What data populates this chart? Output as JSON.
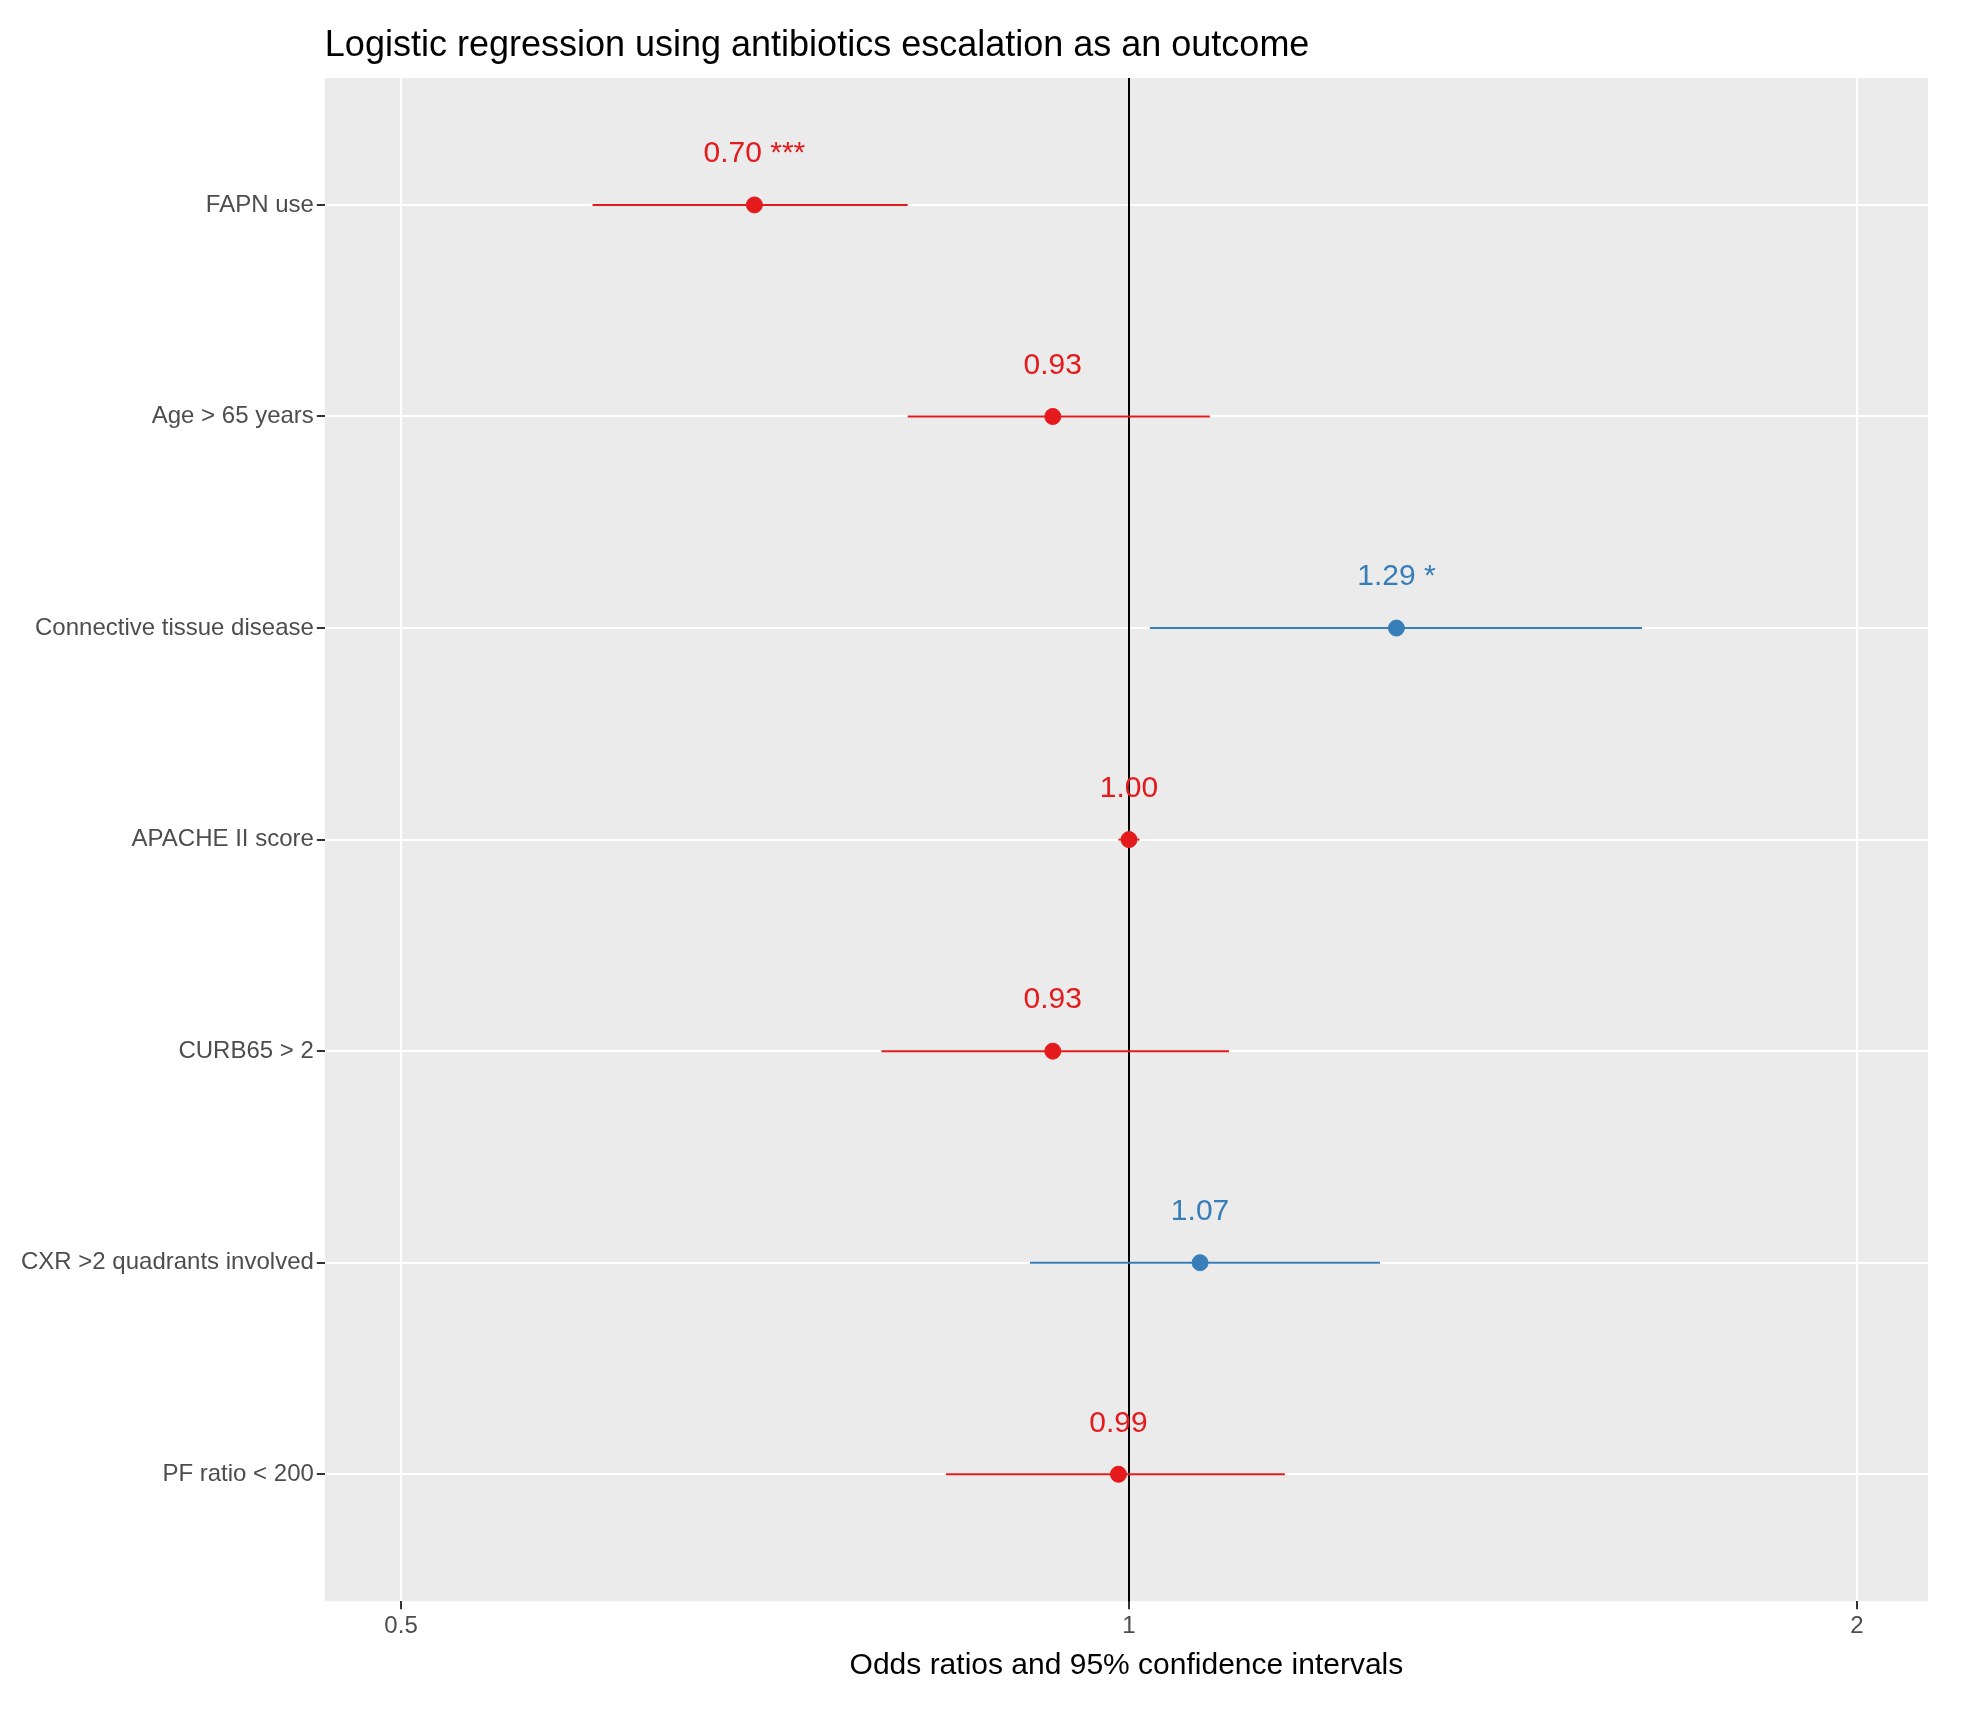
{
  "chart_data": {
    "type": "scatter",
    "title": "Logistic regression using antibiotics escalation as an outcome",
    "xlabel": "Odds ratios and 95% confidence intervals",
    "categories": [
      "FAPN use",
      "Age > 65 years",
      "Connective tissue disease",
      "APACHE II score",
      "CURB65 > 2",
      "CXR >2 quadrants involved",
      "PF ratio < 200"
    ],
    "values": [
      0.7,
      0.93,
      1.29,
      1.0,
      0.93,
      1.07,
      0.99
    ],
    "errors": [
      [
        0.6,
        0.81
      ],
      [
        0.81,
        1.08
      ],
      [
        1.02,
        1.63
      ],
      [
        0.99,
        1.01
      ],
      [
        0.79,
        1.1
      ],
      [
        0.91,
        1.27
      ],
      [
        0.84,
        1.16
      ]
    ],
    "colors": [
      "#e41a1c",
      "#e41a1c",
      "#377eb8",
      "#e41a1c",
      "#e41a1c",
      "#377eb8",
      "#e41a1c"
    ],
    "value_labels": [
      "0.70 ***",
      "0.93",
      "1.29 *",
      "1.00",
      "0.93",
      "1.07",
      "0.99"
    ],
    "orientation": "horizontal",
    "log": "x",
    "xlim": [
      0.465,
      2.14
    ],
    "xticks": [
      0.5,
      1,
      2
    ],
    "ref_lines": [
      {
        "axis": "x",
        "value": 1,
        "color": "#000000"
      }
    ],
    "grid": true,
    "marker": "circle",
    "legend": false
  }
}
